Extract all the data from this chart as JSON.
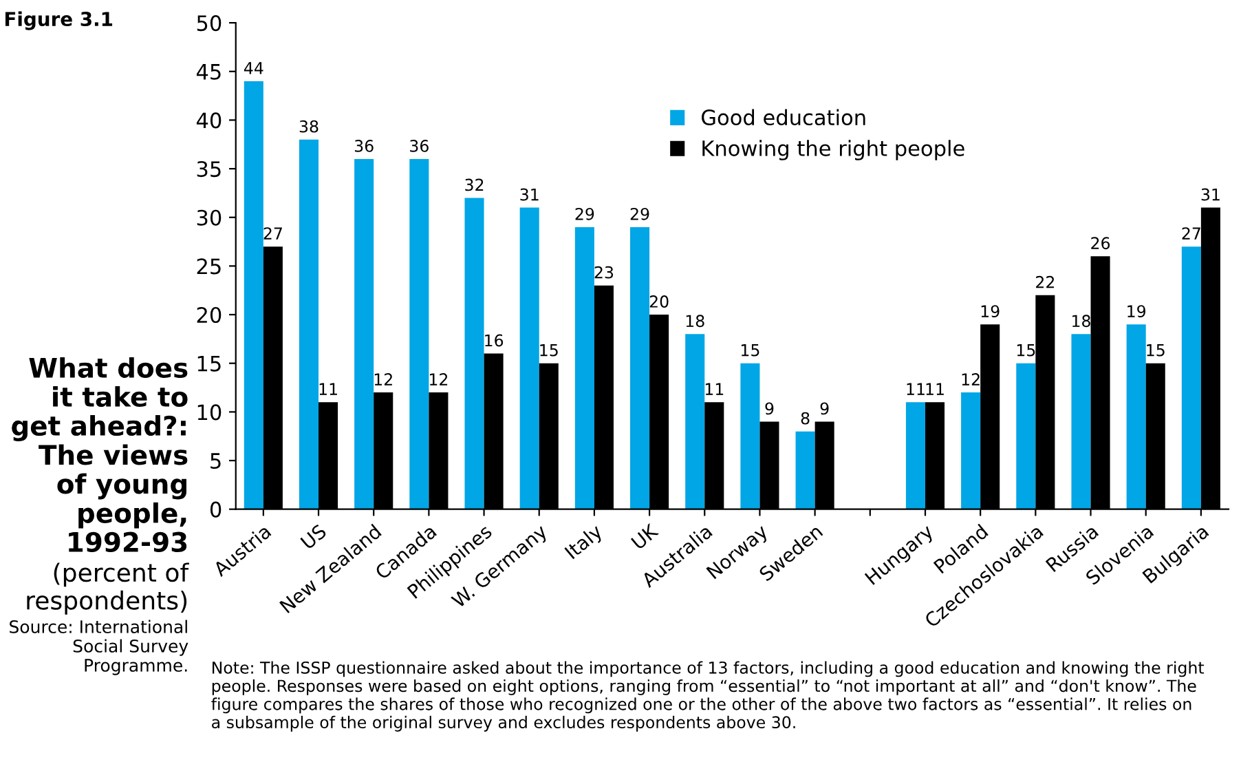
{
  "chart_data": {
    "type": "bar",
    "title": "What does it take to get ahead?: The views of young people, 1992-93",
    "subtitle": "(percent of respondents)",
    "categories": [
      "Austria",
      "US",
      "New Zealand",
      "Canada",
      "Philippines",
      "W. Germany",
      "Italy",
      "UK",
      "Australia",
      "Norway",
      "Sweden",
      null,
      "Hungary",
      "Poland",
      "Czechoslovakia",
      "Russia",
      "Slovenia",
      "Bulgaria"
    ],
    "series": [
      {
        "name": "Good education",
        "color": "#00a6e6",
        "values": [
          44,
          38,
          36,
          36,
          32,
          31,
          29,
          29,
          18,
          15,
          8,
          null,
          11,
          12,
          15,
          18,
          19,
          27
        ]
      },
      {
        "name": "Knowing the right people",
        "color": "#000000",
        "values": [
          27,
          11,
          12,
          12,
          16,
          15,
          23,
          20,
          11,
          9,
          9,
          null,
          11,
          19,
          22,
          26,
          15,
          31
        ]
      }
    ],
    "ylim": [
      0,
      50
    ],
    "yticks": [
      0,
      5,
      10,
      15,
      20,
      25,
      30,
      35,
      40,
      45,
      50
    ],
    "data_labels": true,
    "grid": false,
    "legend": "top right",
    "annotations": [
      "Figure 3.1",
      "Source: International Social Survey Programme.",
      "Note: The ISSP questionnaire asked about the importance of 13 factors, including a good education and knowing the right people. Responses were based on eight options, ranging from “essential” to “not important at all” and “don't know”. The figure compares the shares of those who recognized one or the other of the above two factors as “essential”. It relies on a subsample of the original survey and excludes respondents above 30."
    ]
  }
}
